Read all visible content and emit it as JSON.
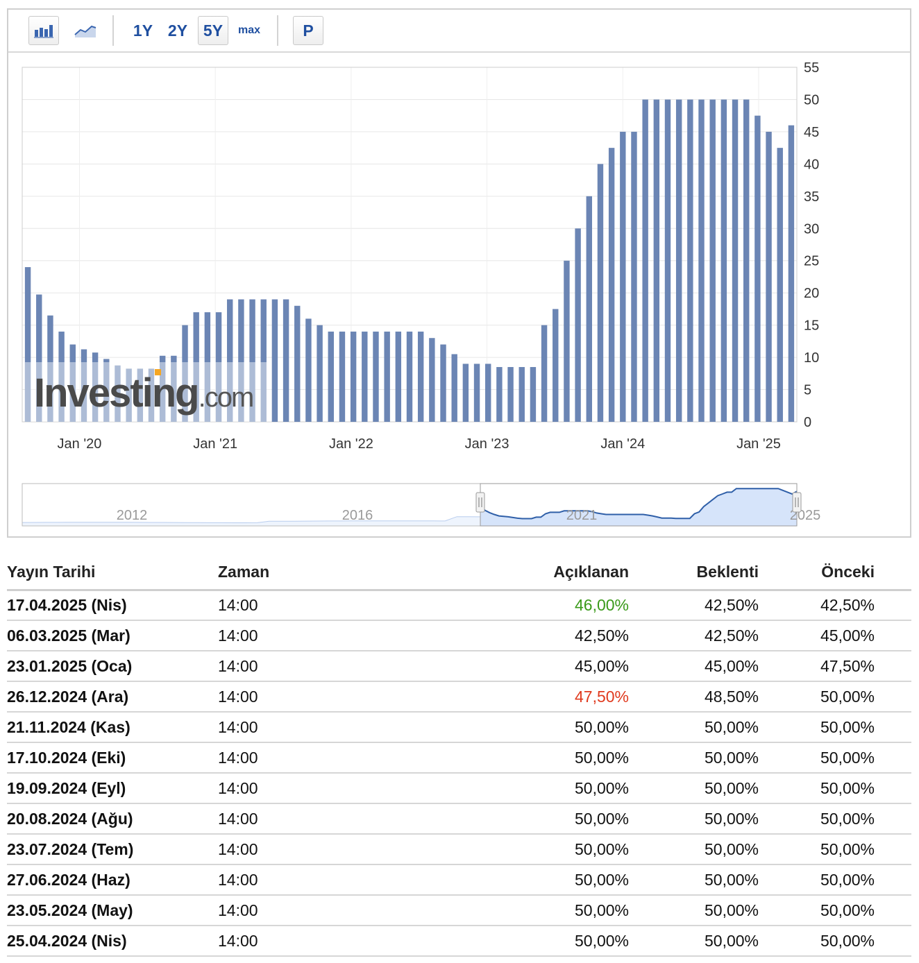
{
  "toolbar": {
    "bar_icon": "bar-chart-icon",
    "line_icon": "line-chart-icon",
    "btn_1y": "1Y",
    "btn_2y": "2Y",
    "btn_5y": "5Y",
    "btn_max": "max",
    "btn_p": "P"
  },
  "watermark": "Investing.com",
  "chart_data": {
    "type": "bar",
    "y_ticks": [
      0,
      5,
      10,
      15,
      20,
      25,
      30,
      35,
      40,
      45,
      50,
      55
    ],
    "ylim": [
      0,
      55
    ],
    "x_ticks": [
      "Jan '20",
      "Jan '21",
      "Jan '22",
      "Jan '23",
      "Jan '24",
      "Jan '25"
    ],
    "grid": true,
    "bar_color": "#6b85b4",
    "values": [
      24,
      19.75,
      16.5,
      14,
      12,
      11.25,
      10.75,
      9.75,
      8.75,
      8.25,
      8.25,
      8.25,
      10.25,
      10.25,
      15,
      17,
      17,
      17,
      19,
      19,
      19,
      19,
      19,
      19,
      18,
      16,
      15,
      14,
      14,
      14,
      14,
      14,
      14,
      14,
      14,
      14,
      13,
      12,
      10.5,
      9,
      9,
      9,
      8.5,
      8.5,
      8.5,
      8.5,
      15,
      17.5,
      25,
      30,
      35,
      40,
      42.5,
      45,
      45,
      50,
      50,
      50,
      50,
      50,
      50,
      50,
      50,
      50,
      50,
      47.5,
      45,
      42.5,
      46
    ],
    "navigator": {
      "labels": [
        "2012",
        "2016",
        "2021",
        "2025"
      ],
      "line_color": "#2f5fa8",
      "fill_color": "#d6e4fa"
    }
  },
  "table": {
    "headers": {
      "date": "Yayın Tarihi",
      "time": "Zaman",
      "actual": "Açıklanan",
      "forecast": "Beklenti",
      "previous": "Önceki"
    },
    "rows": [
      {
        "date": "17.04.2025 (Nis)",
        "time": "14:00",
        "actual": "46,00%",
        "forecast": "42,50%",
        "previous": "42,50%",
        "color": "#3a9a1a"
      },
      {
        "date": "06.03.2025 (Mar)",
        "time": "14:00",
        "actual": "42,50%",
        "forecast": "42,50%",
        "previous": "45,00%",
        "color": "#111111"
      },
      {
        "date": "23.01.2025 (Oca)",
        "time": "14:00",
        "actual": "45,00%",
        "forecast": "45,00%",
        "previous": "47,50%",
        "color": "#111111"
      },
      {
        "date": "26.12.2024 (Ara)",
        "time": "14:00",
        "actual": "47,50%",
        "forecast": "48,50%",
        "previous": "50,00%",
        "color": "#e03a1e"
      },
      {
        "date": "21.11.2024 (Kas)",
        "time": "14:00",
        "actual": "50,00%",
        "forecast": "50,00%",
        "previous": "50,00%",
        "color": "#111111"
      },
      {
        "date": "17.10.2024 (Eki)",
        "time": "14:00",
        "actual": "50,00%",
        "forecast": "50,00%",
        "previous": "50,00%",
        "color": "#111111"
      },
      {
        "date": "19.09.2024 (Eyl)",
        "time": "14:00",
        "actual": "50,00%",
        "forecast": "50,00%",
        "previous": "50,00%",
        "color": "#111111"
      },
      {
        "date": "20.08.2024 (Ağu)",
        "time": "14:00",
        "actual": "50,00%",
        "forecast": "50,00%",
        "previous": "50,00%",
        "color": "#111111"
      },
      {
        "date": "23.07.2024 (Tem)",
        "time": "14:00",
        "actual": "50,00%",
        "forecast": "50,00%",
        "previous": "50,00%",
        "color": "#111111"
      },
      {
        "date": "27.06.2024 (Haz)",
        "time": "14:00",
        "actual": "50,00%",
        "forecast": "50,00%",
        "previous": "50,00%",
        "color": "#111111"
      },
      {
        "date": "23.05.2024 (May)",
        "time": "14:00",
        "actual": "50,00%",
        "forecast": "50,00%",
        "previous": "50,00%",
        "color": "#111111"
      },
      {
        "date": "25.04.2024 (Nis)",
        "time": "14:00",
        "actual": "50,00%",
        "forecast": "50,00%",
        "previous": "50,00%",
        "color": "#111111"
      }
    ]
  }
}
